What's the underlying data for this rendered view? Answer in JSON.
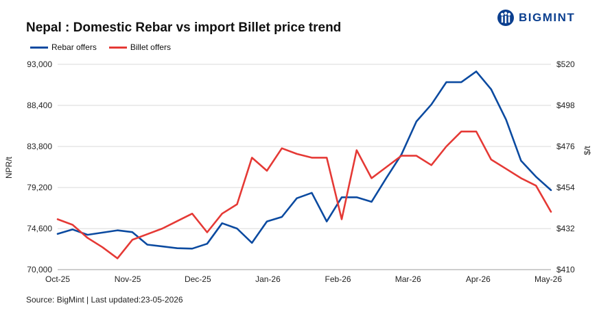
{
  "brand": {
    "name": "BIGMINT",
    "color": "#0b3f8f"
  },
  "source": "Source: BigMint | Last updated:23-05-2026",
  "chart_data": {
    "type": "line",
    "title": "Nepal : Domestic Rebar vs import Billet price trend",
    "ylabel": "NPR/t",
    "y2label": "$/t",
    "legend_position": "top-left",
    "grid": true,
    "ylim": [
      70000,
      93000
    ],
    "y2lim": [
      410,
      520
    ],
    "yticks": [
      "70,000",
      "74,600",
      "79,200",
      "83,800",
      "88,400",
      "93,000"
    ],
    "y2ticks": [
      "$410",
      "$432",
      "$454",
      "$476",
      "$498",
      "$520"
    ],
    "xticks": [
      "Oct-25",
      "Nov-25",
      "Dec-25",
      "Jan-26",
      "Feb-26",
      "Mar-26",
      "Apr-26",
      "May-26"
    ],
    "series": [
      {
        "name": "Rebar offers",
        "axis": "left",
        "color": "#0b4aa0",
        "values": [
          74000,
          74500,
          73900,
          74150,
          74400,
          74200,
          72800,
          72600,
          72400,
          72350,
          72900,
          75200,
          74600,
          73000,
          75400,
          75900,
          78000,
          78600,
          75400,
          78100,
          78100,
          77600,
          80300,
          82900,
          86600,
          88500,
          91000,
          91000,
          92200,
          90200,
          86800,
          82200,
          80400,
          78900
        ]
      },
      {
        "name": "Billet offers",
        "axis": "right",
        "color": "#e53935",
        "values": [
          437,
          434,
          427,
          422,
          416,
          426,
          429,
          432,
          436,
          440,
          430,
          440,
          445,
          470,
          463,
          475,
          472,
          470,
          470,
          437,
          474,
          459,
          465,
          471,
          471,
          466,
          476,
          484,
          484,
          469,
          464,
          459,
          455,
          441
        ]
      }
    ]
  }
}
